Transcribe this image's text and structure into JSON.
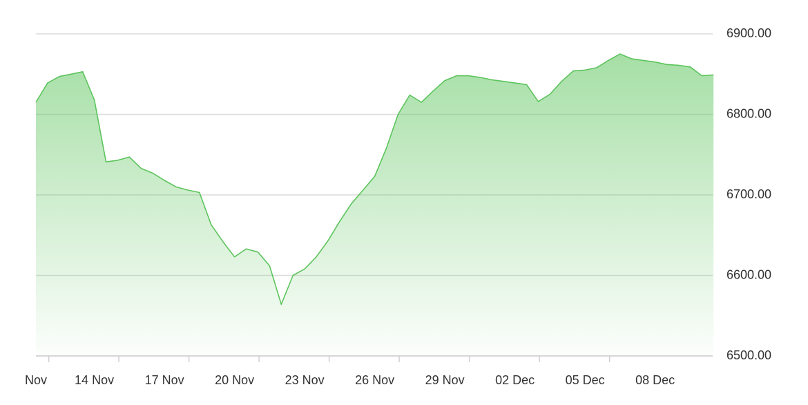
{
  "chart_data": {
    "type": "area",
    "categories": [
      "Nov",
      null,
      null,
      null,
      null,
      "14 Nov",
      null,
      null,
      null,
      null,
      null,
      "17 Nov",
      null,
      null,
      null,
      null,
      null,
      "20 Nov",
      null,
      null,
      null,
      null,
      null,
      "23 Nov",
      null,
      null,
      null,
      null,
      null,
      "26 Nov",
      null,
      null,
      null,
      null,
      null,
      "29 Nov",
      null,
      null,
      null,
      null,
      null,
      "02 Dec",
      null,
      null,
      null,
      null,
      null,
      "05 Dec",
      null,
      null,
      null,
      null,
      null,
      "08 Dec",
      null,
      null,
      null,
      null,
      null
    ],
    "values": [
      6815,
      6839,
      6847,
      6850,
      6853,
      6818,
      6741,
      6743,
      6747,
      6733,
      6727,
      6718,
      6710,
      6706,
      6703,
      6663,
      6642,
      6623,
      6633,
      6629,
      6612,
      6564,
      6600,
      6608,
      6623,
      6643,
      6667,
      6689,
      6706,
      6723,
      6758,
      6800,
      6824,
      6815,
      6829,
      6842,
      6848,
      6848,
      6846,
      6843,
      6841,
      6839,
      6837,
      6816,
      6825,
      6841,
      6854,
      6855,
      6858,
      6867,
      6875,
      6869,
      6867,
      6865,
      6862,
      6861,
      6859,
      6848,
      6849
    ],
    "color": "#5cc45c",
    "ylim": [
      6500,
      6900
    ],
    "yticks": [
      {
        "value": 6500,
        "label": "6500.00"
      },
      {
        "value": 6600,
        "label": "6600.00"
      },
      {
        "value": 6700,
        "label": "6700.00"
      },
      {
        "value": 6800,
        "label": "6800.00"
      },
      {
        "value": 6900,
        "label": "6900.00"
      }
    ],
    "grid": true
  }
}
